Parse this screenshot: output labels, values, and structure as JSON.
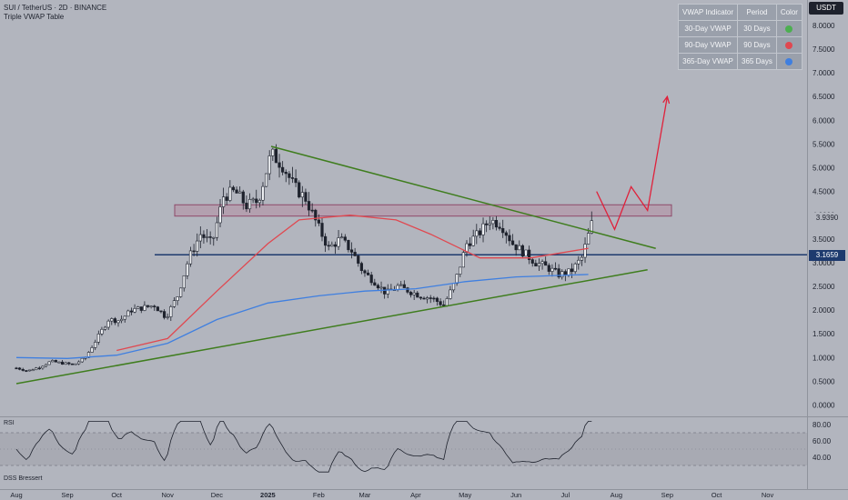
{
  "header": {
    "symbol_line": "SUI / TetherUS · 2D · BINANCE",
    "indicator_line": "Triple VWAP Table"
  },
  "currency_badge": "USDT",
  "vwap_table": {
    "headers": [
      "VWAP Indicator",
      "Period",
      "Color"
    ],
    "rows": [
      {
        "name": "30-Day VWAP",
        "period": "30 Days",
        "color": "#4caf50"
      },
      {
        "name": "90-Day VWAP",
        "period": "90 Days",
        "color": "#e04850"
      },
      {
        "name": "365-Day VWAP",
        "period": "365 Days",
        "color": "#3f7fe0"
      }
    ]
  },
  "price_labels": {
    "last_price": "3.9390",
    "horizontal_line": "3.1659"
  },
  "panes": {
    "rsi_label": "RSI",
    "dss_label": "DSS Bressert"
  },
  "chart_data": [
    {
      "type": "candlestick",
      "title": "SUI / TetherUS · 2D · BINANCE",
      "x_tick_labels": [
        "Aug",
        "Sep",
        "Oct",
        "Nov",
        "Dec",
        "2025",
        "Feb",
        "Mar",
        "Apr",
        "May",
        "Jun",
        "Jul",
        "Aug",
        "Sep",
        "Oct",
        "Nov"
      ],
      "y_tick_labels": [
        "8.0000",
        "7.5000",
        "7.0000",
        "6.5000",
        "6.0000",
        "5.5000",
        "5.0000",
        "4.5000",
        "4.0000",
        "3.5000",
        "3.0000",
        "2.5000",
        "2.0000",
        "1.5000",
        "1.0000",
        "0.5000",
        "0.0000"
      ],
      "ylim": [
        0,
        8.3
      ],
      "y_scale": "linear",
      "grid": false,
      "close_path": [
        [
          "2024-08-01",
          0.78
        ],
        [
          "2024-08-08",
          0.72
        ],
        [
          "2024-08-15",
          0.8
        ],
        [
          "2024-08-22",
          0.92
        ],
        [
          "2024-08-29",
          0.88
        ],
        [
          "2024-09-05",
          0.85
        ],
        [
          "2024-09-12",
          1.0
        ],
        [
          "2024-09-19",
          1.4
        ],
        [
          "2024-09-26",
          1.8
        ],
        [
          "2024-10-03",
          1.78
        ],
        [
          "2024-10-10",
          2.0
        ],
        [
          "2024-10-17",
          2.05
        ],
        [
          "2024-10-24",
          2.1
        ],
        [
          "2024-10-31",
          1.85
        ],
        [
          "2024-11-07",
          2.3
        ],
        [
          "2024-11-14",
          3.1
        ],
        [
          "2024-11-21",
          3.6
        ],
        [
          "2024-11-28",
          3.4
        ],
        [
          "2024-12-05",
          4.4
        ],
        [
          "2024-12-12",
          4.5
        ],
        [
          "2024-12-19",
          4.2
        ],
        [
          "2024-12-26",
          4.3
        ],
        [
          "2025-01-03",
          5.3
        ],
        [
          "2025-01-10",
          5.05
        ],
        [
          "2025-01-17",
          4.6
        ],
        [
          "2025-01-24",
          4.35
        ],
        [
          "2025-01-31",
          3.8
        ],
        [
          "2025-02-07",
          3.3
        ],
        [
          "2025-02-14",
          3.5
        ],
        [
          "2025-02-21",
          3.25
        ],
        [
          "2025-02-28",
          2.8
        ],
        [
          "2025-03-07",
          2.6
        ],
        [
          "2025-03-14",
          2.35
        ],
        [
          "2025-03-21",
          2.5
        ],
        [
          "2025-03-28",
          2.4
        ],
        [
          "2025-04-04",
          2.3
        ],
        [
          "2025-04-11",
          2.25
        ],
        [
          "2025-04-18",
          2.1
        ],
        [
          "2025-04-25",
          2.6
        ],
        [
          "2025-05-02",
          3.4
        ],
        [
          "2025-05-09",
          3.6
        ],
        [
          "2025-05-16",
          3.9
        ],
        [
          "2025-05-23",
          3.8
        ],
        [
          "2025-05-30",
          3.4
        ],
        [
          "2025-06-06",
          3.2
        ],
        [
          "2025-06-13",
          3.0
        ],
        [
          "2025-06-20",
          2.9
        ],
        [
          "2025-06-27",
          2.75
        ],
        [
          "2025-07-04",
          2.8
        ],
        [
          "2025-07-11",
          3.1
        ],
        [
          "2025-07-18",
          3.94
        ]
      ],
      "series": [
        {
          "name": "30-Day VWAP",
          "color": "#4caf50"
        },
        {
          "name": "90-Day VWAP",
          "color": "#e04850",
          "points": [
            [
              "2024-10-01",
              1.15
            ],
            [
              "2024-11-01",
              1.4
            ],
            [
              "2024-12-01",
              2.4
            ],
            [
              "2025-01-01",
              3.4
            ],
            [
              "2025-01-20",
              3.9
            ],
            [
              "2025-02-20",
              4.0
            ],
            [
              "2025-03-20",
              3.9
            ],
            [
              "2025-04-10",
              3.6
            ],
            [
              "2025-05-10",
              3.1
            ],
            [
              "2025-06-10",
              3.1
            ],
            [
              "2025-07-15",
              3.3
            ]
          ]
        },
        {
          "name": "365-Day VWAP",
          "color": "#3f7fe0",
          "points": [
            [
              "2024-08-01",
              1.0
            ],
            [
              "2024-09-01",
              0.98
            ],
            [
              "2024-10-01",
              1.05
            ],
            [
              "2024-11-01",
              1.3
            ],
            [
              "2024-12-01",
              1.8
            ],
            [
              "2025-01-01",
              2.15
            ],
            [
              "2025-02-01",
              2.3
            ],
            [
              "2025-03-01",
              2.4
            ],
            [
              "2025-04-01",
              2.45
            ],
            [
              "2025-05-01",
              2.6
            ],
            [
              "2025-06-01",
              2.7
            ],
            [
              "2025-07-15",
              2.75
            ]
          ]
        }
      ],
      "annotations": {
        "descending_trendline": [
          [
            "2025-01-03",
            5.45
          ],
          [
            "2025-08-25",
            3.3
          ]
        ],
        "ascending_trendline": [
          [
            "2024-08-01",
            0.45
          ],
          [
            "2025-08-20",
            2.85
          ]
        ],
        "horizontal_line": 3.1659,
        "resistance_zone": {
          "x": [
            "2024-11-01",
            "2025-08-22"
          ],
          "y": [
            4.0,
            4.2
          ]
        },
        "projection_arrow": [
          [
            "2025-07-20",
            4.5
          ],
          [
            "2025-07-31",
            3.7
          ],
          [
            "2025-08-10",
            4.6
          ],
          [
            "2025-08-20",
            4.1
          ],
          [
            "2025-09-01",
            6.5
          ]
        ]
      }
    },
    {
      "type": "line",
      "title": "RSI",
      "y_tick_labels": [
        "80.00",
        "60.00",
        "40.00"
      ],
      "bands": [
        70,
        30
      ]
    }
  ]
}
